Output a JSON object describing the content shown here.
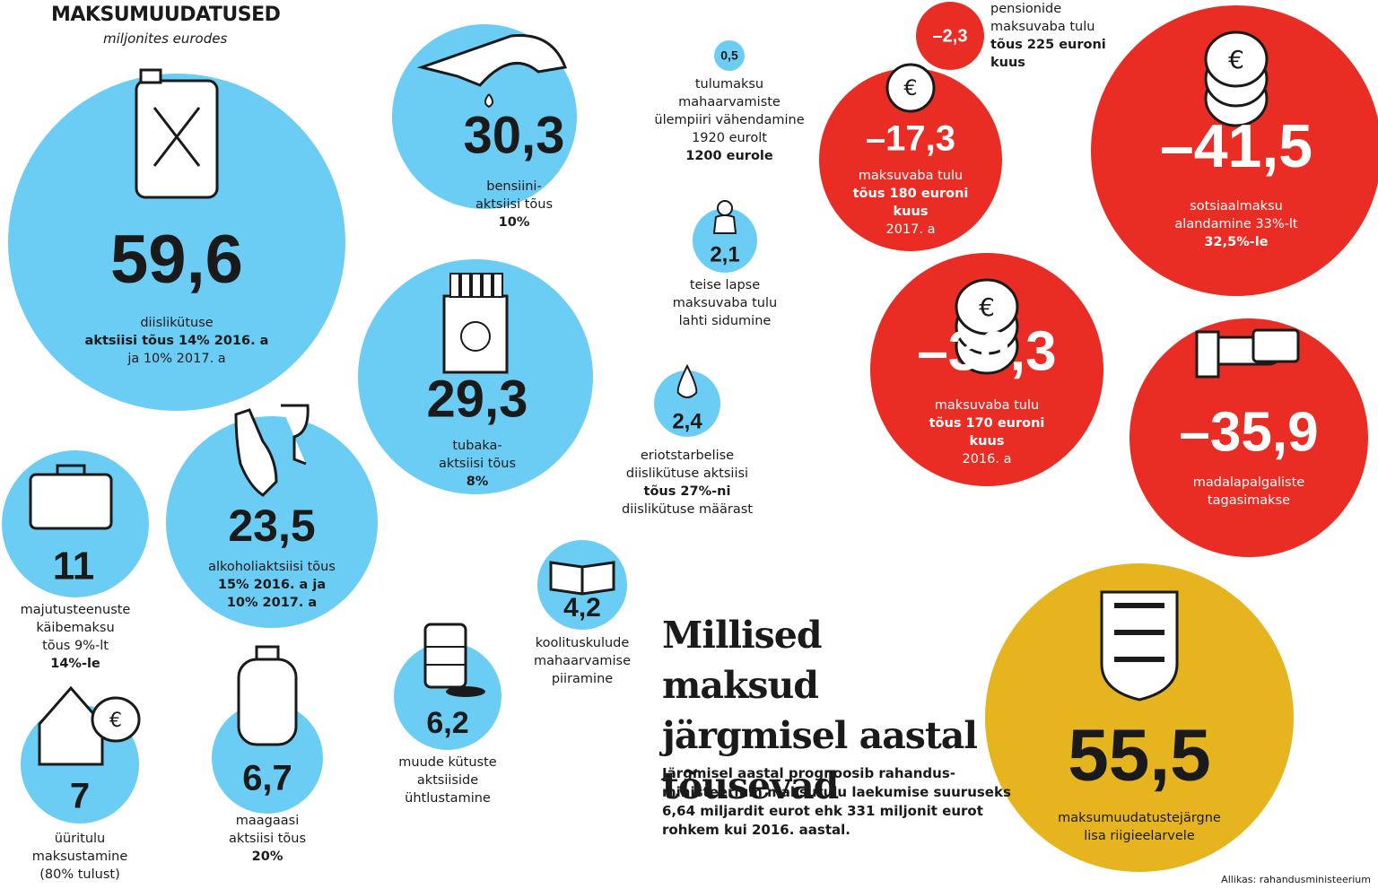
{
  "header": {
    "title": "MAKSUMUUDATUSED",
    "subtitle": "miljonites eurodes"
  },
  "headline": "Millised maksud järgmisel aastal tõusevad",
  "intro": "Järgmisel aastal prognoosib rahandus-ministeerium maksutulu laekumise suuruseks 6,64 miljardit eurot ehk 331 miljonit eurot rohkem kui 2016. aastal.",
  "source": "Allikas: rahandusministeerium",
  "colors": {
    "increase": "#6ccdf4",
    "decrease": "#ea2d24",
    "total": "#e6b41e"
  },
  "chart_data": {
    "type": "bubble",
    "title": "MAKSUMUUDATUSED",
    "subtitle": "miljonites eurodes",
    "items": [
      {
        "value": 59.6,
        "label": "59,6",
        "kind": "increase",
        "icon": "jerrycan-icon",
        "text": [
          "diislikütuse",
          "aktsiisi tõus 14% 2016. a",
          "ja 10% 2017. a"
        ]
      },
      {
        "value": 30.3,
        "label": "30,3",
        "kind": "increase",
        "icon": "fuel-nozzle-icon",
        "text": [
          "bensiini-",
          "aktsiisi tõus",
          "10%"
        ]
      },
      {
        "value": 29.3,
        "label": "29,3",
        "kind": "increase",
        "icon": "cigarette-pack-icon",
        "text": [
          "tubaka-",
          "aktsiisi tõus",
          "8%"
        ]
      },
      {
        "value": 23.5,
        "label": "23,5",
        "kind": "increase",
        "icon": "wine-bottle-glass-icon",
        "text": [
          "alkoholiaktsiisi tõus",
          "15% 2016. a ja",
          "10% 2017. a"
        ]
      },
      {
        "value": 11,
        "label": "11",
        "kind": "increase",
        "icon": "suitcase-icon",
        "text": [
          "majutusteenuste",
          "käibemaksu",
          "tõus 9%-lt",
          "14%-le"
        ]
      },
      {
        "value": 7,
        "label": "7",
        "kind": "increase",
        "icon": "house-coins-icon",
        "text": [
          "üüritulu",
          "maksustamine",
          "(80% tulust)"
        ]
      },
      {
        "value": 6.7,
        "label": "6,7",
        "kind": "increase",
        "icon": "gas-cylinder-icon",
        "text": [
          "maagaasi",
          "aktsiisi tõus",
          "20%"
        ]
      },
      {
        "value": 6.2,
        "label": "6,2",
        "kind": "increase",
        "icon": "oil-barrel-icon",
        "text": [
          "muude kütuste",
          "aktsiiside",
          "ühtlustamine"
        ]
      },
      {
        "value": 4.2,
        "label": "4,2",
        "kind": "increase",
        "icon": "open-book-icon",
        "text": [
          "koolituskulude",
          "mahaarvamise",
          "piiramine"
        ]
      },
      {
        "value": 2.4,
        "label": "2,4",
        "kind": "increase",
        "icon": "drop-icon",
        "text": [
          "eriotstarbelise",
          "diislikütuse aktsiisi",
          "tõus 27%-ni",
          "diislikütuse määrast"
        ]
      },
      {
        "value": 2.1,
        "label": "2,1",
        "kind": "increase",
        "icon": "baby-icon",
        "text": [
          "teise lapse",
          "maksuvaba tulu",
          "lahti sidumine"
        ]
      },
      {
        "value": 0.5,
        "label": "0,5",
        "kind": "increase",
        "icon": "",
        "text": [
          "tulumaksu",
          "mahaarvamiste",
          "ülempiiri vähendamine",
          "1920 eurolt",
          "1200 eurole"
        ]
      },
      {
        "value": -2.3,
        "label": "–2,3",
        "kind": "decrease",
        "icon": "",
        "text": [
          "pensionide",
          "maksuvaba tulu",
          "tõus 225 euroni",
          "kuus"
        ]
      },
      {
        "value": -17.3,
        "label": "–17,3",
        "kind": "decrease",
        "icon": "coin-icon",
        "text": [
          "maksuvaba tulu",
          "tõus 180 euroni",
          "kuus",
          "2017. a"
        ]
      },
      {
        "value": -41.5,
        "label": "–41,5",
        "kind": "decrease",
        "icon": "coin-stack-icon",
        "text": [
          "sotsiaalmaksu",
          "alandamine 33%-lt",
          "32,5%-le"
        ]
      },
      {
        "value": -30.3,
        "label": "–30,3",
        "kind": "decrease",
        "icon": "coin-stack-icon",
        "text": [
          "maksuvaba tulu",
          "tõus 170 euroni",
          "kuus",
          "2016. a"
        ]
      },
      {
        "value": -35.9,
        "label": "–35,9",
        "kind": "decrease",
        "icon": "hand-wallet-icon",
        "text": [
          "madalapalgaliste",
          "tagasimakse"
        ]
      },
      {
        "value": 55.5,
        "label": "55,5",
        "kind": "total",
        "icon": "coat-of-arms-icon",
        "text": [
          "maksumuudatustejärgne",
          "lisa riigieelarvele"
        ]
      }
    ]
  }
}
